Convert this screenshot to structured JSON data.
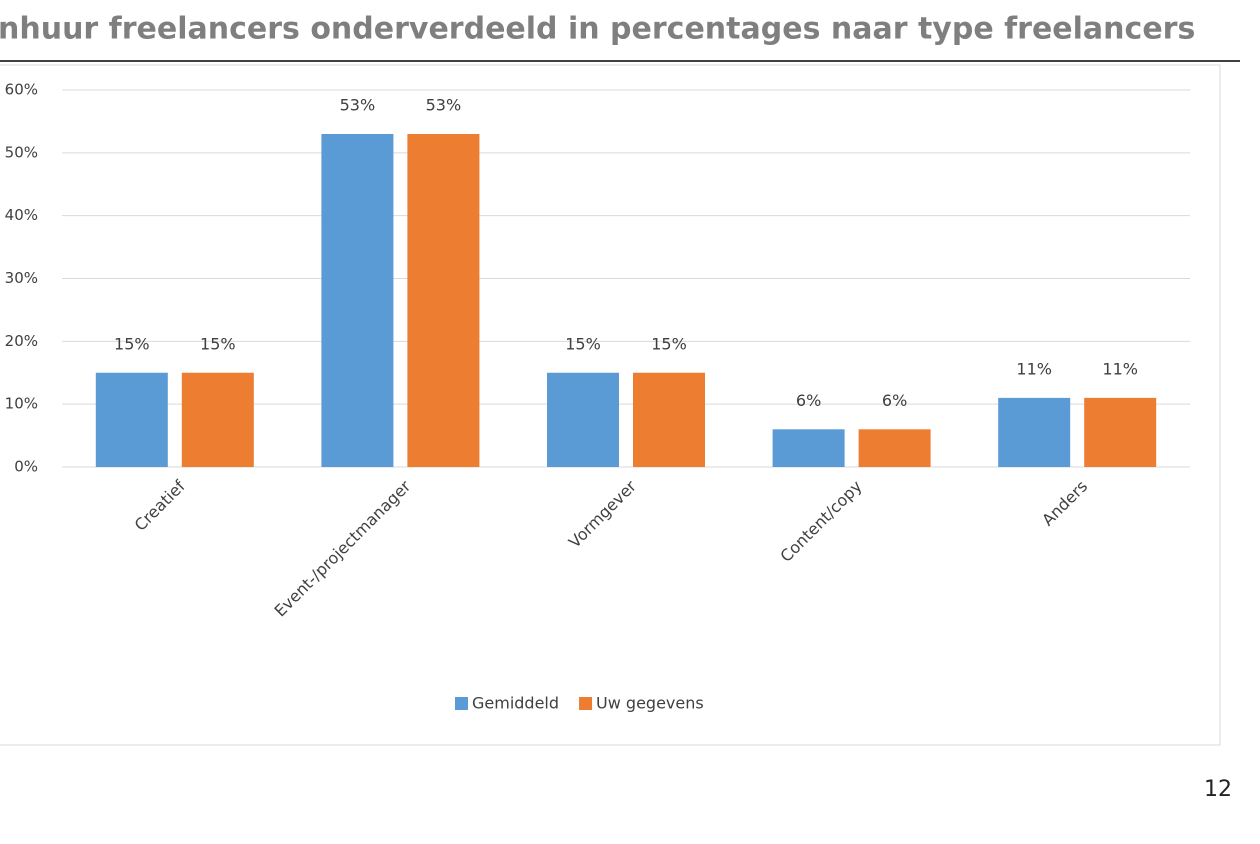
{
  "chart_data": {
    "type": "bar",
    "title": "nhuur freelancers onderverdeeld in percentages naar type freelancers",
    "page_number": "12",
    "categories": [
      "Creatief",
      "Event-/projectmanager",
      "Vormgever",
      "Content/copy",
      "Anders"
    ],
    "series": [
      {
        "name": "Gemiddeld",
        "color": "#5b9bd5",
        "values": [
          15,
          53,
          15,
          6,
          11
        ],
        "value_labels": [
          "15%",
          "53%",
          "15%",
          "6%",
          "11%"
        ]
      },
      {
        "name": "Uw gegevens",
        "color": "#ed7d31",
        "values": [
          15,
          53,
          15,
          6,
          11
        ],
        "value_labels": [
          "15%",
          "53%",
          "15%",
          "6%",
          "11%"
        ]
      }
    ],
    "ylim": [
      0,
      60
    ],
    "yticks": [
      {
        "value": 0,
        "label": "0%"
      },
      {
        "value": 10,
        "label": "10%"
      },
      {
        "value": 20,
        "label": "20%"
      },
      {
        "value": 30,
        "label": "30%"
      },
      {
        "value": 40,
        "label": "40%"
      },
      {
        "value": 50,
        "label": "50%"
      },
      {
        "value": 60,
        "label": "60%"
      }
    ],
    "grid": true,
    "legend": "bottom"
  }
}
